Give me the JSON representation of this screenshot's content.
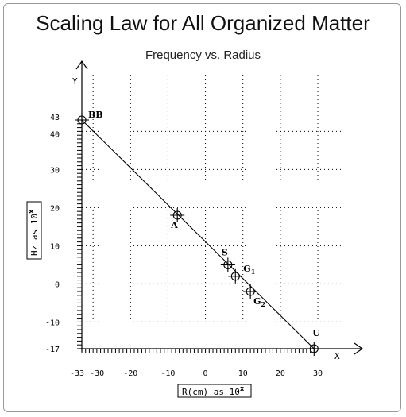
{
  "chart_data": {
    "type": "scatter",
    "title": "Scaling Law for All Organized Matter",
    "subtitle": "Frequency vs. Radius",
    "xlabel_prefix": "R(cm) as 10",
    "xlabel_exp": "x",
    "ylabel_prefix": "Hz as 10",
    "ylabel_exp": "x",
    "x_axis_letter": "X",
    "y_axis_letter": "Y",
    "xlim": [
      -33,
      30
    ],
    "ylim": [
      -17,
      43
    ],
    "x_ticks": [
      "-33",
      "-30",
      "-20",
      "-10",
      "0",
      "10",
      "20",
      "30"
    ],
    "y_ticks": [
      "43",
      "40",
      "30",
      "20",
      "10",
      "0",
      "-10",
      "-17"
    ],
    "trend_line": [
      [
        -33,
        43
      ],
      [
        29,
        -17
      ]
    ],
    "points": [
      {
        "label": "BB",
        "x": -33,
        "y": 43
      },
      {
        "label": "A",
        "x": -7.5,
        "y": 18
      },
      {
        "label": "S",
        "x": 6,
        "y": 5
      },
      {
        "label": "G",
        "sub": "1",
        "x": 8,
        "y": 2
      },
      {
        "label": "G",
        "sub": "2",
        "x": 12,
        "y": -2
      },
      {
        "label": "U",
        "x": 29,
        "y": -17
      }
    ]
  }
}
